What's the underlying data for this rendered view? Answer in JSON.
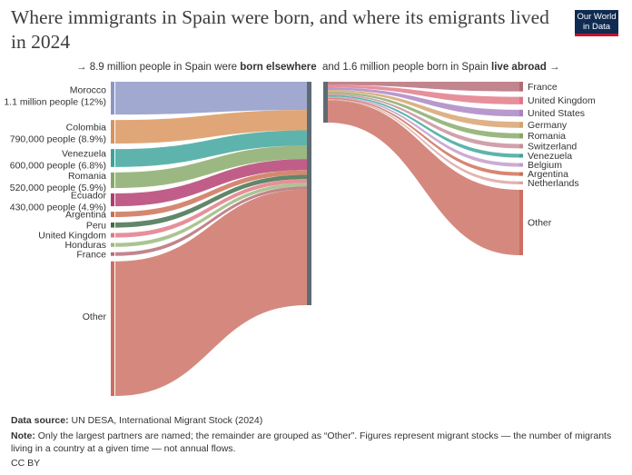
{
  "header": {
    "title": "Where immigrants in Spain were born, and where its emigrants lived in 2024",
    "logo_line1": "Our World",
    "logo_line2": "in Data",
    "left_sub_prefix": "→ 8.9 million people in Spain were ",
    "left_sub_bold": "born elsewhere",
    "right_sub_prefix": "and 1.6 million people born in Spain ",
    "right_sub_bold": "live abroad",
    "right_sub_suffix": " →"
  },
  "footer": {
    "source_label": "Data source:",
    "source_text": " UN DESA, International Migrant Stock (2024)",
    "note_label": "Note:",
    "note_text": " Only the largest partners are named; the remainder are grouped as “Other”. Figures represent migrant stocks — the number of migrants living in a country at a given time — not annual flows.",
    "license": "CC BY"
  },
  "chart_data": {
    "type": "sankey",
    "immigrants_total": "8.9 million",
    "emigrants_total": "1.6 million",
    "immigrants_by_origin": [
      {
        "name": "Morocco",
        "detail": "1.1 million people (12%)",
        "value": 1.1,
        "color": "#8c96c6"
      },
      {
        "name": "Colombia",
        "detail": "790,000 people (8.9%)",
        "value": 0.79,
        "color": "#d9925a"
      },
      {
        "name": "Venezuela",
        "detail": "600,000 people (6.8%)",
        "value": 0.6,
        "color": "#3aa39a"
      },
      {
        "name": "Romania",
        "detail": "520,000 people (5.9%)",
        "value": 0.52,
        "color": "#86a866"
      },
      {
        "name": "Ecuador",
        "detail": "430,000 people (4.9%)",
        "value": 0.43,
        "color": "#b23a6f"
      },
      {
        "name": "Argentina",
        "detail": "",
        "value": 0.18,
        "color": "#cc6e52"
      },
      {
        "name": "Peru",
        "detail": "",
        "value": 0.17,
        "color": "#3f6b47"
      },
      {
        "name": "United Kingdom",
        "detail": "",
        "value": 0.15,
        "color": "#e07785"
      },
      {
        "name": "Honduras",
        "detail": "",
        "value": 0.13,
        "color": "#99b87a"
      },
      {
        "name": "France",
        "detail": "",
        "value": 0.12,
        "color": "#b46a74"
      },
      {
        "name": "Other",
        "detail": "",
        "value": 4.51,
        "color": "#cc6f61"
      }
    ],
    "emigrants_by_destination": [
      {
        "name": "France",
        "value": 0.13,
        "color": "#b46a74"
      },
      {
        "name": "United Kingdom",
        "value": 0.1,
        "color": "#e07785"
      },
      {
        "name": "United States",
        "value": 0.09,
        "color": "#a883c2"
      },
      {
        "name": "Germany",
        "value": 0.08,
        "color": "#d6a16c"
      },
      {
        "name": "Romania",
        "value": 0.07,
        "color": "#86a866"
      },
      {
        "name": "Switzerland",
        "value": 0.06,
        "color": "#c78e98"
      },
      {
        "name": "Venezuela",
        "value": 0.05,
        "color": "#3aa39a"
      },
      {
        "name": "Belgium",
        "value": 0.05,
        "color": "#c09ac9"
      },
      {
        "name": "Argentina",
        "value": 0.05,
        "color": "#cc6e52"
      },
      {
        "name": "Netherlands",
        "value": 0.04,
        "color": "#dba2a0"
      },
      {
        "name": "Other",
        "value": 0.88,
        "color": "#cc6f61"
      }
    ],
    "spain_bar_color": "#5f6b73"
  }
}
